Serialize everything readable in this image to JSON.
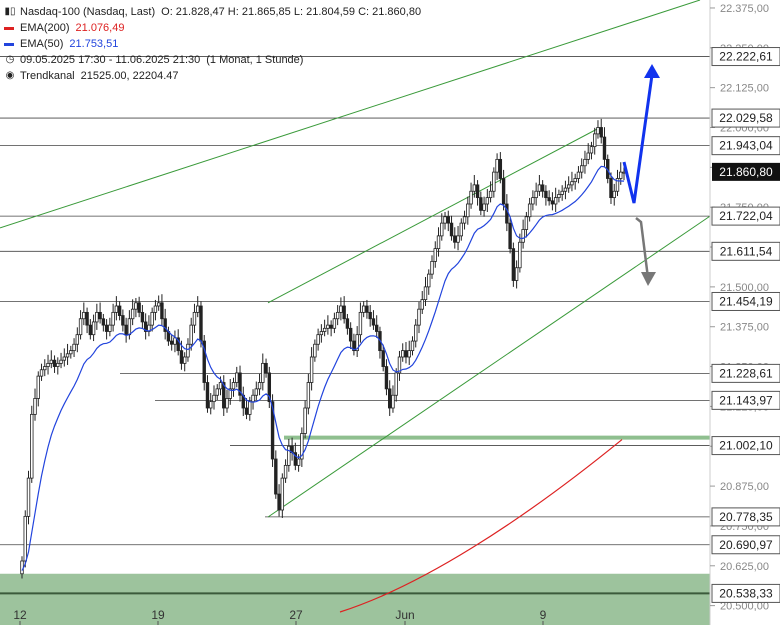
{
  "legend": {
    "instrument": "Nasdaq-100 (Nasdaq, Last)",
    "ohlc": "O: 21.828,47  H: 21.865,85  L: 21.804,59  C: 21.860,80",
    "ema200_label": "EMA(200)",
    "ema200_value": "21.076,49",
    "ema50_label": "EMA(50)",
    "ema50_value": "21.753,51",
    "range": "09.05.2025 17:30 - 11.06.2025 21:30",
    "period": "(1 Monat, 1 Stunde)",
    "channel_label": "Trendkanal",
    "channel_values": "21525.00, 22204.47"
  },
  "colors": {
    "ema200": "#dd2222",
    "ema50": "#2244dd",
    "channel": "#3a9a3a",
    "support_zone": "#9dc39d",
    "arrow_up": "#1133ee",
    "arrow_down": "#777777",
    "candle": "#222222"
  },
  "chart_data": {
    "type": "candlestick",
    "y_axis_ticks": [
      "22.375,00",
      "22.250,00",
      "22.125,00",
      "22.000,00",
      "21.875,00",
      "21.750,00",
      "21.625,00",
      "21.500,00",
      "21.375,00",
      "21.250,00",
      "21.125,00",
      "21.000,00",
      "20.875,00",
      "20.750,00",
      "20.625,00",
      "20.500,00"
    ],
    "x_axis_ticks": [
      "12",
      "19",
      "27",
      "Jun",
      "9"
    ],
    "ylim": [
      20480,
      22400
    ],
    "levels": [
      {
        "value": 22222.61,
        "label": "22.222,61"
      },
      {
        "value": 22029.58,
        "label": "22.029,58"
      },
      {
        "value": 21943.04,
        "label": "21.943,04"
      },
      {
        "value": 21722.04,
        "label": "21.722,04"
      },
      {
        "value": 21611.54,
        "label": "21.611,54"
      },
      {
        "value": 21454.19,
        "label": "21.454,19"
      },
      {
        "value": 21228.61,
        "label": "21.228,61"
      },
      {
        "value": 21143.97,
        "label": "21.143,97"
      },
      {
        "value": 21002.1,
        "label": "21.002,10"
      },
      {
        "value": 20778.35,
        "label": "20.778,35"
      },
      {
        "value": 20690.97,
        "label": "20.690,97"
      },
      {
        "value": 20538.33,
        "label": "20.538,33"
      }
    ],
    "current_price": {
      "value": 21860.8,
      "label": "21.860,80"
    },
    "support_zone": [
      20480,
      20600
    ],
    "closes": [
      20640,
      20780,
      20900,
      21100,
      21150,
      21220,
      21240,
      21250,
      21260,
      21270,
      21250,
      21260,
      21270,
      21280,
      21290,
      21300,
      21320,
      21350,
      21400,
      21420,
      21380,
      21350,
      21390,
      21420,
      21400,
      21380,
      21360,
      21380,
      21420,
      21440,
      21410,
      21380,
      21350,
      21400,
      21430,
      21450,
      21420,
      21390,
      21360,
      21380,
      21420,
      21440,
      21450,
      21400,
      21360,
      21330,
      21320,
      21340,
      21300,
      21260,
      21280,
      21320,
      21380,
      21420,
      21440,
      21330,
      21200,
      21120,
      21140,
      21160,
      21180,
      21200,
      21120,
      21150,
      21180,
      21200,
      21230,
      21160,
      21120,
      21100,
      21140,
      21160,
      21180,
      21200,
      21260,
      21230,
      21140,
      20960,
      20850,
      20800,
      20900,
      20940,
      21000,
      20980,
      20940,
      20960,
      21040,
      21120,
      21200,
      21280,
      21320,
      21350,
      21360,
      21370,
      21380,
      21370,
      21400,
      21420,
      21440,
      21400,
      21370,
      21330,
      21300,
      21350,
      21420,
      21440,
      21420,
      21400,
      21380,
      21360,
      21300,
      21250,
      21180,
      21120,
      21160,
      21230,
      21280,
      21300,
      21280,
      21300,
      21330,
      21380,
      21430,
      21460,
      21500,
      21540,
      21580,
      21620,
      21660,
      21700,
      21720,
      21700,
      21660,
      21640,
      21660,
      21700,
      21720,
      21760,
      21800,
      21820,
      21780,
      21740,
      21760,
      21780,
      21800,
      21860,
      21900,
      21840,
      21760,
      21700,
      21620,
      21520,
      21560,
      21640,
      21680,
      21720,
      21760,
      21780,
      21800,
      21820,
      21800,
      21780,
      21770,
      21760,
      21780,
      21790,
      21800,
      21810,
      21820,
      21830,
      21840,
      21860,
      21880,
      21900,
      21920,
      21940,
      21980,
      22000,
      21970,
      21900,
      21840,
      21780,
      21800,
      21840,
      21860,
      21860
    ]
  }
}
